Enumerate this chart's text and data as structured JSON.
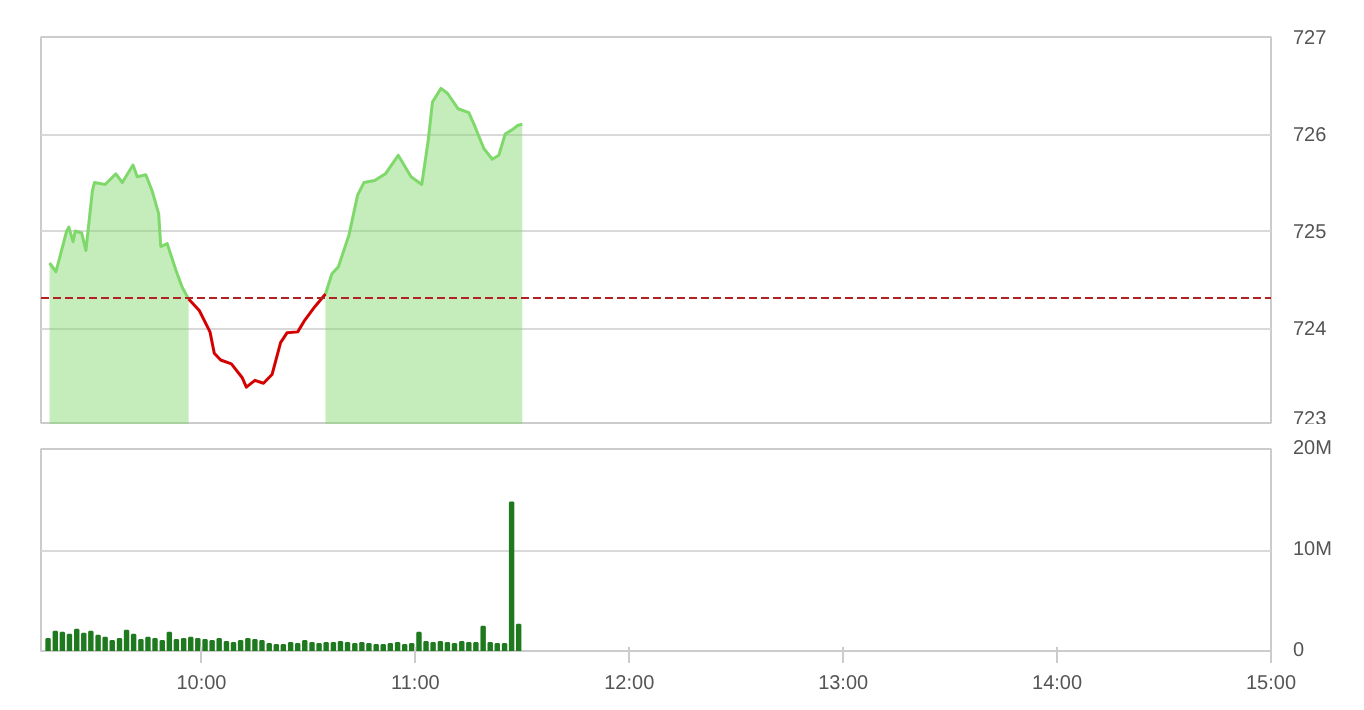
{
  "chart_data": [
    {
      "type": "area",
      "x": [
        9.29,
        9.32,
        9.37,
        9.38,
        9.4,
        9.41,
        9.44,
        9.46,
        9.49,
        9.5,
        9.55,
        9.6,
        9.63,
        9.68,
        9.7,
        9.74,
        9.77,
        9.8,
        9.81,
        9.84,
        9.88,
        9.91,
        9.94,
        9.99,
        10.04,
        10.06,
        10.09,
        10.14,
        10.19,
        10.21,
        10.25,
        10.29,
        10.33,
        10.37,
        10.4,
        10.45,
        10.48,
        10.53,
        10.58,
        10.61,
        10.64,
        10.69,
        10.73,
        10.76,
        10.81,
        10.86,
        10.92,
        10.95,
        10.98,
        11.03,
        11.06,
        11.08,
        11.12,
        11.15,
        11.2,
        11.25,
        11.28,
        11.32,
        11.36,
        11.39,
        11.42,
        11.45,
        11.48,
        11.5
      ],
      "series": [
        {
          "type": "area",
          "color": "#7ed86a",
          "values": [
            724.67,
            724.58,
            725.0,
            725.04,
            724.89,
            725.0,
            724.98,
            724.8,
            725.41,
            725.5,
            725.48,
            725.59,
            725.5,
            725.68,
            725.56,
            725.58,
            725.41,
            725.18,
            724.84,
            724.87,
            724.6,
            724.42,
            724.3,
            null,
            null,
            null,
            null,
            null,
            null,
            null,
            null,
            null,
            null,
            null,
            null,
            null,
            null,
            null,
            724.35,
            724.56,
            724.63,
            724.96,
            725.37,
            725.5,
            725.52,
            725.59,
            725.78,
            725.67,
            725.56,
            725.48,
            725.93,
            726.33,
            726.47,
            726.42,
            726.26,
            726.22,
            726.07,
            725.85,
            725.74,
            725.78,
            726.0,
            726.04,
            726.09,
            726.1
          ]
        },
        {
          "type": "line",
          "color": "#d40000",
          "values": [
            null,
            null,
            null,
            null,
            null,
            null,
            null,
            null,
            null,
            null,
            null,
            null,
            null,
            null,
            null,
            null,
            null,
            null,
            null,
            null,
            null,
            null,
            724.3,
            724.18,
            723.96,
            723.74,
            723.67,
            723.63,
            723.49,
            723.39,
            723.46,
            723.43,
            723.52,
            723.85,
            723.95,
            723.96,
            724.07,
            724.22,
            724.35,
            null,
            null,
            null,
            null,
            null,
            null,
            null,
            null,
            null,
            null,
            null,
            null,
            null,
            null,
            null,
            null,
            null,
            null,
            null,
            null,
            null,
            null,
            null,
            null,
            null
          ]
        }
      ],
      "xlim": [
        9.25,
        15.0
      ],
      "ylim": [
        723,
        727
      ],
      "yticks": [
        723,
        724,
        725,
        726,
        727
      ],
      "ref_lines": [
        {
          "axis": "y",
          "value": 724.31,
          "color": "#b22222",
          "line_style": "dashed"
        }
      ],
      "grid": "y",
      "tick_labels": "y"
    },
    {
      "type": "bar",
      "x": [
        9.283,
        9.317,
        9.35,
        9.383,
        9.417,
        9.45,
        9.483,
        9.517,
        9.55,
        9.583,
        9.617,
        9.65,
        9.683,
        9.717,
        9.75,
        9.783,
        9.817,
        9.85,
        9.883,
        9.917,
        9.95,
        9.983,
        10.017,
        10.05,
        10.083,
        10.117,
        10.15,
        10.183,
        10.217,
        10.25,
        10.283,
        10.317,
        10.35,
        10.383,
        10.417,
        10.45,
        10.483,
        10.517,
        10.55,
        10.583,
        10.617,
        10.65,
        10.683,
        10.717,
        10.75,
        10.783,
        10.817,
        10.85,
        10.883,
        10.917,
        10.95,
        10.983,
        11.017,
        11.05,
        11.083,
        11.117,
        11.15,
        11.183,
        11.217,
        11.25,
        11.283,
        11.317,
        11.35,
        11.383,
        11.417,
        11.45,
        11.483
      ],
      "series": [
        {
          "color": "#1f7a1f",
          "values": [
            1.2,
            1.9,
            1.8,
            1.6,
            2.1,
            1.7,
            1.9,
            1.5,
            1.3,
            1.0,
            1.2,
            2.0,
            1.6,
            1.1,
            1.3,
            1.2,
            1.0,
            1.8,
            1.1,
            1.2,
            1.3,
            1.2,
            1.1,
            1.0,
            1.2,
            0.9,
            0.8,
            1.0,
            1.2,
            1.1,
            1.0,
            0.7,
            0.6,
            0.6,
            0.8,
            0.7,
            1.0,
            0.8,
            0.7,
            0.8,
            0.8,
            0.9,
            0.8,
            0.7,
            0.8,
            0.7,
            0.6,
            0.6,
            0.7,
            0.8,
            0.6,
            0.7,
            1.8,
            0.9,
            0.8,
            0.9,
            0.8,
            0.7,
            0.9,
            0.8,
            0.8,
            2.4,
            0.8,
            0.7,
            0.7,
            14.7,
            2.6
          ]
        }
      ],
      "xlim": [
        9.25,
        15.0
      ],
      "xticks": [
        {
          "value": 10,
          "label": "10:00"
        },
        {
          "value": 11,
          "label": "11:00"
        },
        {
          "value": 12,
          "label": "12:00"
        },
        {
          "value": 13,
          "label": "13:00"
        },
        {
          "value": 14,
          "label": "14:00"
        },
        {
          "value": 15,
          "label": "15:00"
        }
      ],
      "ylim": [
        0,
        20
      ],
      "yticks": [
        0,
        {
          "value": 10,
          "label": "10M"
        },
        {
          "value": 20,
          "label": "20M"
        }
      ],
      "grid": "y"
    }
  ]
}
